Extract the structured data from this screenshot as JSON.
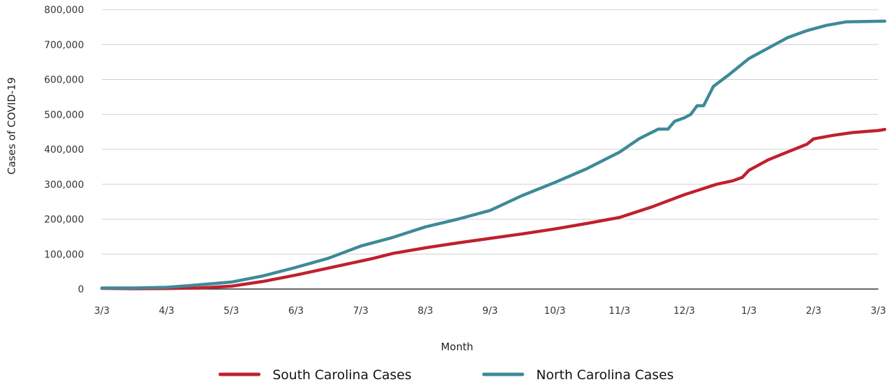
{
  "chart_data": {
    "type": "line",
    "xlabel": "Month",
    "ylabel": "Cases  of COVID-19",
    "ylim": [
      0,
      800000
    ],
    "yticks": [
      0,
      100000,
      200000,
      300000,
      400000,
      500000,
      600000,
      700000,
      800000
    ],
    "ytick_labels": [
      "0",
      "100,000",
      "200,000",
      "300,000",
      "400,000",
      "500,000",
      "600,000",
      "700,000",
      "800,000"
    ],
    "xticks": [
      "3/3",
      "4/3",
      "5/3",
      "6/3",
      "7/3",
      "8/3",
      "9/3",
      "10/3",
      "11/3",
      "12/3",
      "1/3",
      "2/3",
      "3/3"
    ],
    "grid": "horizontal",
    "legend_position": "bottom",
    "series": [
      {
        "name": "South Carolina Cases",
        "color": "#c0202f",
        "x": [
          0,
          0.5,
          1,
          1.5,
          2,
          2.5,
          3,
          3.5,
          4,
          4.2,
          4.5,
          5,
          5.5,
          6,
          6.5,
          7,
          7.5,
          8,
          8.5,
          9,
          9.5,
          9.75,
          9.9,
          10,
          10.3,
          10.7,
          10.9,
          11,
          11.3,
          11.6,
          12,
          12.1
        ],
        "values": [
          2000,
          1000,
          1500,
          3000,
          8000,
          22000,
          40000,
          60000,
          80000,
          88000,
          102000,
          118000,
          132000,
          145000,
          158000,
          172000,
          188000,
          205000,
          235000,
          270000,
          300000,
          310000,
          320000,
          340000,
          370000,
          400000,
          415000,
          430000,
          440000,
          448000,
          454000,
          457000
        ]
      },
      {
        "name": "North Carolina Cases",
        "color": "#3e8a98",
        "x": [
          0,
          0.5,
          1,
          1.5,
          2,
          2.5,
          3,
          3.5,
          4,
          4.5,
          5,
          5.5,
          6,
          6.5,
          7,
          7.5,
          8,
          8.3,
          8.6,
          8.75,
          8.85,
          9,
          9.1,
          9.2,
          9.3,
          9.45,
          9.7,
          10,
          10.3,
          10.6,
          10.9,
          11.2,
          11.5,
          12.1
        ],
        "values": [
          3000,
          3000,
          5000,
          12000,
          20000,
          38000,
          62000,
          88000,
          123000,
          148000,
          178000,
          200000,
          225000,
          268000,
          305000,
          345000,
          392000,
          430000,
          458000,
          458000,
          480000,
          490000,
          500000,
          525000,
          525000,
          580000,
          615000,
          660000,
          690000,
          720000,
          740000,
          755000,
          765000,
          767000
        ]
      }
    ]
  }
}
